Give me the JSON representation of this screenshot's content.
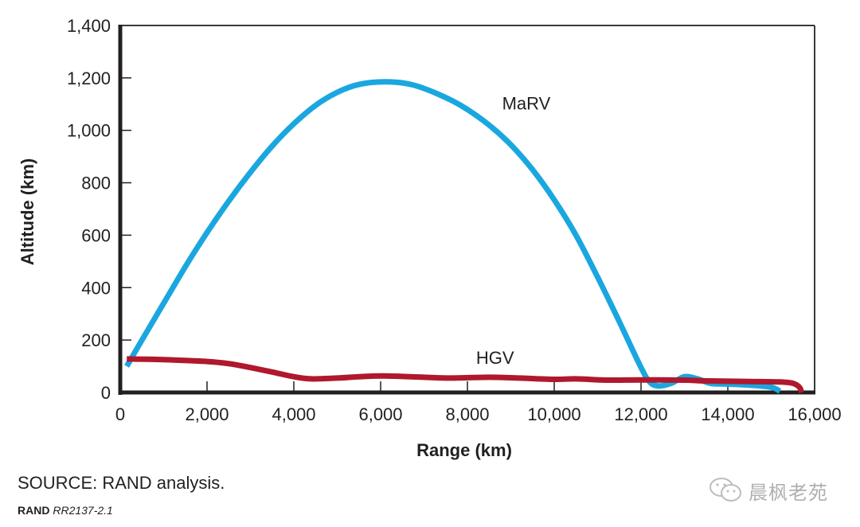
{
  "chart_data": {
    "type": "line",
    "title": "",
    "xlabel": "Range (km)",
    "ylabel": "Altitude (km)",
    "xlim": [
      0,
      16000
    ],
    "ylim": [
      0,
      1400
    ],
    "x_ticks": [
      0,
      2000,
      4000,
      6000,
      8000,
      10000,
      12000,
      14000,
      16000
    ],
    "x_tick_labels": [
      "0",
      "2,000",
      "4,000",
      "6,000",
      "8,000",
      "10,000",
      "12,000",
      "14,000",
      "16,000"
    ],
    "y_ticks": [
      0,
      200,
      400,
      600,
      800,
      1000,
      1200,
      1400
    ],
    "y_tick_labels": [
      "0",
      "200",
      "400",
      "600",
      "800",
      "1,000",
      "1,200",
      "1,400"
    ],
    "grid": false,
    "legend": "inline labels",
    "series": [
      {
        "name": "MaRV",
        "color": "#1aa7e0",
        "label_at": [
          8800,
          1080
        ],
        "points": [
          [
            150,
            100
          ],
          [
            500,
            200
          ],
          [
            1000,
            340
          ],
          [
            1500,
            480
          ],
          [
            2000,
            610
          ],
          [
            2500,
            730
          ],
          [
            3000,
            840
          ],
          [
            3500,
            940
          ],
          [
            4000,
            1025
          ],
          [
            4500,
            1095
          ],
          [
            5000,
            1145
          ],
          [
            5500,
            1175
          ],
          [
            6100,
            1185
          ],
          [
            6700,
            1175
          ],
          [
            7300,
            1140
          ],
          [
            7900,
            1090
          ],
          [
            8500,
            1020
          ],
          [
            9000,
            945
          ],
          [
            9500,
            850
          ],
          [
            10000,
            735
          ],
          [
            10500,
            600
          ],
          [
            11000,
            440
          ],
          [
            11500,
            270
          ],
          [
            12000,
            95
          ],
          [
            12200,
            40
          ],
          [
            12400,
            25
          ],
          [
            12700,
            35
          ],
          [
            13000,
            60
          ],
          [
            13300,
            52
          ],
          [
            13600,
            35
          ],
          [
            14000,
            32
          ],
          [
            14500,
            28
          ],
          [
            15000,
            20
          ],
          [
            15200,
            5
          ]
        ]
      },
      {
        "name": "HGV",
        "color": "#b0182e",
        "label_at": [
          8200,
          110
        ],
        "points": [
          [
            150,
            128
          ],
          [
            1000,
            125
          ],
          [
            2000,
            118
          ],
          [
            2500,
            110
          ],
          [
            3000,
            95
          ],
          [
            3500,
            78
          ],
          [
            4000,
            60
          ],
          [
            4400,
            52
          ],
          [
            5000,
            55
          ],
          [
            5500,
            60
          ],
          [
            6100,
            63
          ],
          [
            7000,
            58
          ],
          [
            7600,
            55
          ],
          [
            8500,
            58
          ],
          [
            9200,
            55
          ],
          [
            10000,
            50
          ],
          [
            10500,
            52
          ],
          [
            11200,
            47
          ],
          [
            12000,
            48
          ],
          [
            13000,
            47
          ],
          [
            13500,
            44
          ],
          [
            14500,
            42
          ],
          [
            15200,
            40
          ],
          [
            15500,
            35
          ],
          [
            15650,
            20
          ],
          [
            15700,
            0
          ]
        ]
      }
    ]
  },
  "footer": {
    "source": "SOURCE: RAND analysis.",
    "credit_org": "RAND",
    "credit_id": "RR2137-2.1"
  },
  "watermark": {
    "icon": "wechat-icon",
    "text": "晨枫老苑"
  }
}
